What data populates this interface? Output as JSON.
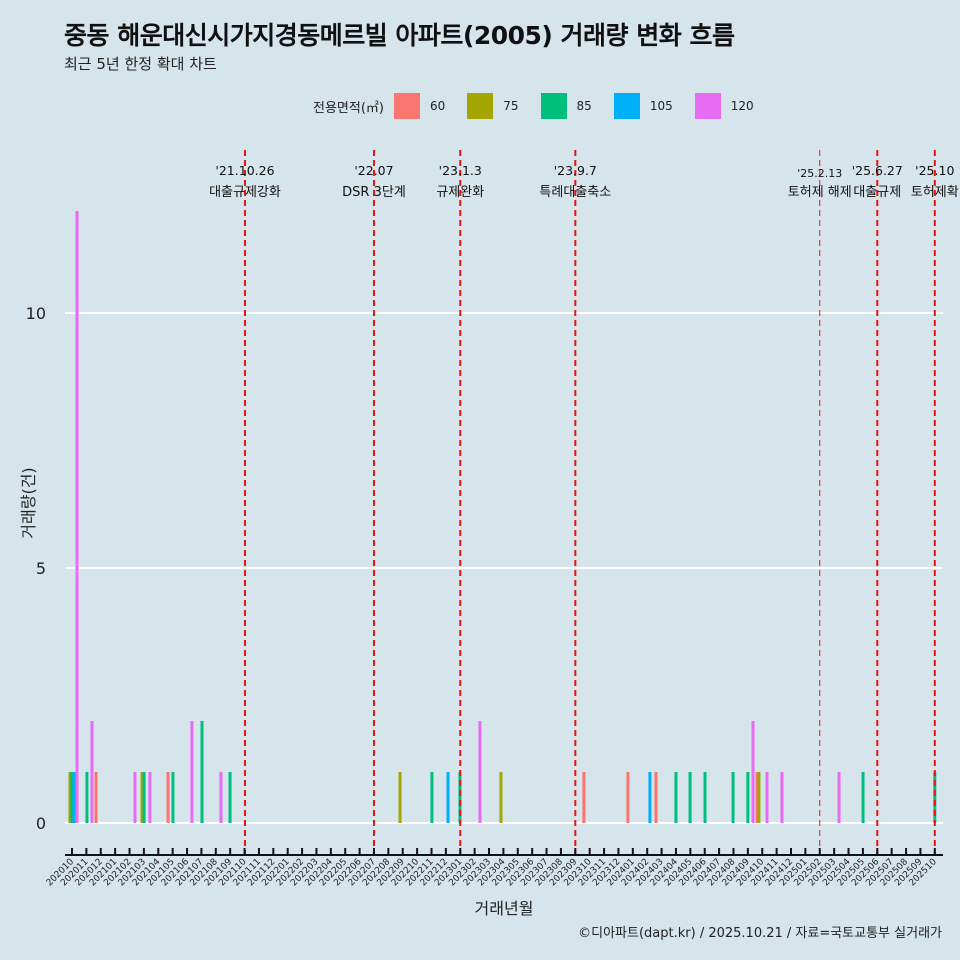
{
  "title": "중동 해운대신시가지경동메르빌 아파트(2005) 거래량 변화 흐름",
  "subtitle": "최근 5년 한정 확대 차트",
  "caption": "©디아파트(dapt.kr) / 2025.10.21 / 자료=국토교통부 실거래가",
  "chart_data": {
    "type": "bar",
    "xlabel": "거래년월",
    "ylabel": "거래량(건)",
    "ylim": [
      -0.55,
      12.5
    ],
    "yticks": [
      0,
      5,
      10
    ],
    "legend": {
      "title": "전용면적(㎡)",
      "position": "top",
      "entries": [
        {
          "label": "60",
          "color": "#F8766D"
        },
        {
          "label": "75",
          "color": "#A3A500"
        },
        {
          "label": "85",
          "color": "#00BF7D"
        },
        {
          "label": "105",
          "color": "#00B0F6"
        },
        {
          "label": "120",
          "color": "#E76BF3"
        }
      ]
    },
    "x_ticks": [
      "202010",
      "202011",
      "202012",
      "202101",
      "202102",
      "202103",
      "202104",
      "202105",
      "202106",
      "202107",
      "202108",
      "202109",
      "202110",
      "202111",
      "202112",
      "202201",
      "202202",
      "202203",
      "202204",
      "202205",
      "202206",
      "202207",
      "202208",
      "202209",
      "202210",
      "202211",
      "202212",
      "202301",
      "202302",
      "202303",
      "202304",
      "202305",
      "202306",
      "202307",
      "202308",
      "202309",
      "202310",
      "202311",
      "202312",
      "202401",
      "202402",
      "202403",
      "202404",
      "202405",
      "202406",
      "202407",
      "202408",
      "202409",
      "202410",
      "202411",
      "202412",
      "202501",
      "202502",
      "202503",
      "202504",
      "202505",
      "202506",
      "202507",
      "202508",
      "202509",
      "202510"
    ],
    "bars_note": "[months since 202010, area, count]",
    "bars": [
      [
        -0.14,
        "75",
        1
      ],
      [
        0,
        "85",
        1
      ],
      [
        0.14,
        "105",
        1
      ],
      [
        0.35,
        "120",
        12
      ],
      [
        1.04,
        "85",
        1
      ],
      [
        1.39,
        "120",
        2
      ],
      [
        1.67,
        "60",
        1
      ],
      [
        4.38,
        "120",
        1
      ],
      [
        4.87,
        "75",
        1
      ],
      [
        5.01,
        "85",
        1
      ],
      [
        5.42,
        "120",
        1
      ],
      [
        6.68,
        "60",
        1
      ],
      [
        7.02,
        "85",
        1
      ],
      [
        8.34,
        "120",
        2
      ],
      [
        9.04,
        "85",
        2
      ],
      [
        10.36,
        "120",
        1
      ],
      [
        10.99,
        "85",
        1
      ],
      [
        22.81,
        "75",
        1
      ],
      [
        25.03,
        "85",
        1
      ],
      [
        26.15,
        "105",
        1
      ],
      [
        26.98,
        "85",
        1
      ],
      [
        28.37,
        "120",
        2
      ],
      [
        29.83,
        "75",
        1
      ],
      [
        35.6,
        "60",
        1
      ],
      [
        38.66,
        "60",
        1
      ],
      [
        40.19,
        "105",
        1
      ],
      [
        40.61,
        "60",
        1
      ],
      [
        42.0,
        "85",
        1
      ],
      [
        42.98,
        "85",
        1
      ],
      [
        44.02,
        "85",
        1
      ],
      [
        45.97,
        "85",
        1
      ],
      [
        47.0,
        "85",
        1
      ],
      [
        47.36,
        "120",
        2
      ],
      [
        47.64,
        "60",
        1
      ],
      [
        47.77,
        "75",
        1
      ],
      [
        48.33,
        "120",
        1
      ],
      [
        49.37,
        "120",
        1
      ],
      [
        53.34,
        "120",
        1
      ],
      [
        55.01,
        "85",
        1
      ],
      [
        60.0,
        "85",
        1
      ]
    ],
    "events": [
      {
        "m": 12.03,
        "date": "'21.10.26",
        "label": "대출규제강화",
        "thin": false
      },
      {
        "m": 21.0,
        "date": "'22.07",
        "label": "DSR 3단계",
        "thin": false
      },
      {
        "m": 27.0,
        "date": "'23.1.3",
        "label": "규제완화",
        "thin": false
      },
      {
        "m": 35.0,
        "date": "'23.9.7",
        "label": "특례대출축소",
        "thin": false
      },
      {
        "m": 52.0,
        "date": "'25.2.13",
        "label": "토허제 해제",
        "thin": true
      },
      {
        "m": 56.0,
        "date": "'25.6.27",
        "label": "대출규제",
        "thin": false
      },
      {
        "m": 60.0,
        "date": "'25.10",
        "label": "토허제확",
        "thin": false
      }
    ]
  }
}
